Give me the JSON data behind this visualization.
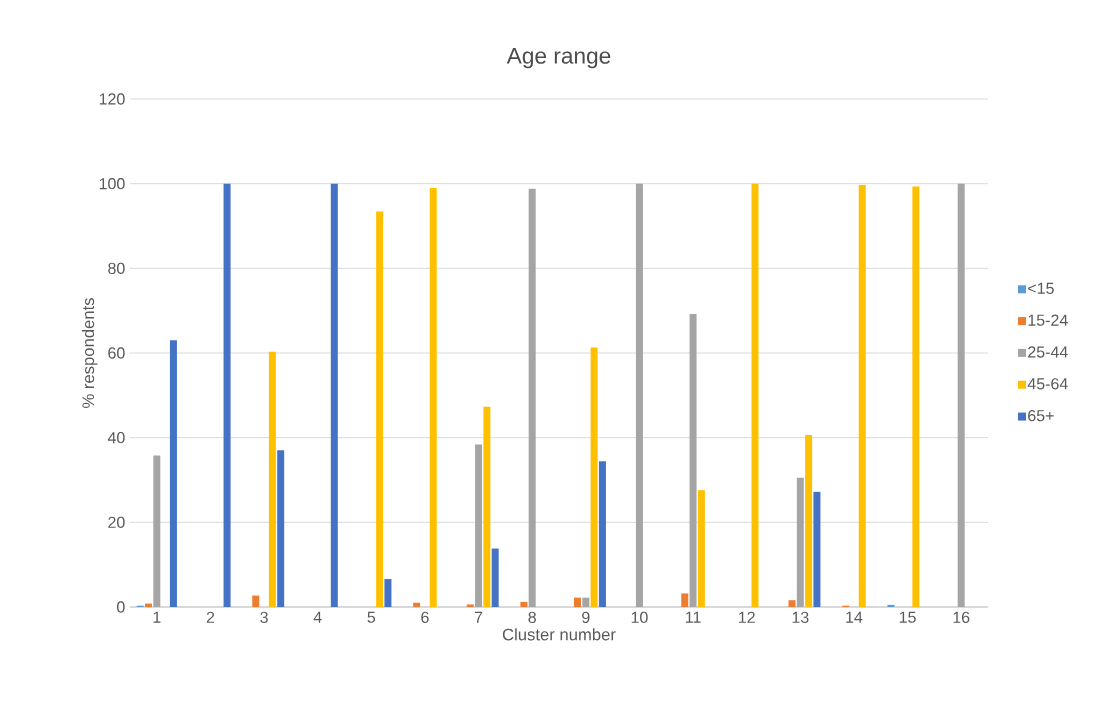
{
  "chart_data": {
    "type": "bar",
    "title": "Age range",
    "xlabel": "Cluster number",
    "ylabel": "% respondents",
    "categories": [
      "1",
      "2",
      "3",
      "4",
      "5",
      "6",
      "7",
      "8",
      "9",
      "10",
      "11",
      "12",
      "13",
      "14",
      "15",
      "16"
    ],
    "series": [
      {
        "name": "<15",
        "color": "#5b9bd5",
        "values": [
          0.3,
          0,
          0,
          0,
          0,
          0,
          0,
          0,
          0,
          0,
          0,
          0,
          0,
          0,
          0.5,
          0
        ]
      },
      {
        "name": "15-24",
        "color": "#ed7d31",
        "values": [
          0.8,
          0,
          2.7,
          0,
          0,
          1.0,
          0.6,
          1.2,
          2.2,
          0,
          3.2,
          0,
          1.6,
          0.3,
          0,
          0
        ]
      },
      {
        "name": "25-44",
        "color": "#a5a5a5",
        "values": [
          35.8,
          0,
          0,
          0,
          0,
          0,
          38.4,
          98.8,
          2.2,
          100,
          69.2,
          0,
          30.5,
          0,
          0,
          100
        ]
      },
      {
        "name": "45-64",
        "color": "#ffc000",
        "values": [
          0,
          0,
          60.3,
          0,
          93.4,
          99,
          47.3,
          0,
          61.3,
          0,
          27.6,
          100,
          40.6,
          99.7,
          99.3,
          0
        ]
      },
      {
        "name": "65+",
        "color": "#4472c4",
        "values": [
          63,
          100,
          37,
          100,
          6.6,
          0,
          13.8,
          0,
          34.4,
          0,
          0,
          0,
          27.2,
          0,
          0,
          0
        ]
      }
    ],
    "ylim": [
      0,
      120
    ],
    "yticks": [
      0,
      20,
      40,
      60,
      80,
      100,
      120
    ],
    "grid": "y",
    "legend": "right"
  }
}
